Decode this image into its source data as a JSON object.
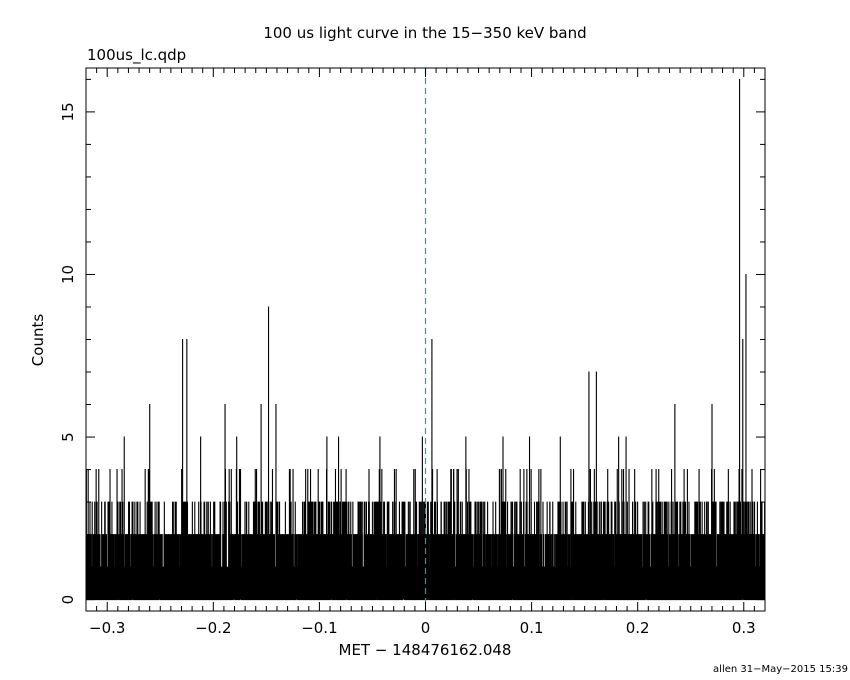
{
  "chart_data": {
    "type": "bar",
    "title": "100 us light curve in the 15−350 keV band",
    "subtitle": "100us_lc.qdp",
    "xlabel": "MET − 148476162.048",
    "ylabel": "Counts",
    "footer": "allen 31−May−2015 15:39",
    "xlim": [
      -0.32,
      0.32
    ],
    "ylim": [
      -0.35,
      16.35
    ],
    "x_ticks": [
      -0.3,
      -0.2,
      -0.1,
      0,
      0.1,
      0.2,
      0.3
    ],
    "x_tick_labels": [
      "−0.3",
      "−0.2",
      "−0.1",
      "0",
      "0.1",
      "0.2",
      "0.3"
    ],
    "y_ticks": [
      0,
      5,
      10,
      15
    ],
    "y_tick_labels": [
      "0",
      "5",
      "10",
      "15"
    ],
    "bin_width": 0.0001,
    "reference_line": {
      "x": 0,
      "style": "dashed",
      "color": "#1e9bb5"
    },
    "peaks": [
      {
        "x": -0.318,
        "y": 4
      },
      {
        "x": -0.284,
        "y": 5
      },
      {
        "x": -0.26,
        "y": 6
      },
      {
        "x": -0.229,
        "y": 8
      },
      {
        "x": -0.225,
        "y": 8
      },
      {
        "x": -0.212,
        "y": 5
      },
      {
        "x": -0.189,
        "y": 6
      },
      {
        "x": -0.178,
        "y": 5
      },
      {
        "x": -0.155,
        "y": 6
      },
      {
        "x": -0.148,
        "y": 9
      },
      {
        "x": -0.141,
        "y": 6
      },
      {
        "x": -0.093,
        "y": 5
      },
      {
        "x": -0.082,
        "y": 5
      },
      {
        "x": -0.043,
        "y": 5
      },
      {
        "x": -0.003,
        "y": 5
      },
      {
        "x": 0.006,
        "y": 8
      },
      {
        "x": 0.038,
        "y": 5
      },
      {
        "x": 0.073,
        "y": 5
      },
      {
        "x": 0.098,
        "y": 5
      },
      {
        "x": 0.127,
        "y": 5
      },
      {
        "x": 0.154,
        "y": 7
      },
      {
        "x": 0.161,
        "y": 7
      },
      {
        "x": 0.182,
        "y": 5
      },
      {
        "x": 0.189,
        "y": 5
      },
      {
        "x": 0.235,
        "y": 6
      },
      {
        "x": 0.27,
        "y": 6
      },
      {
        "x": 0.296,
        "y": 16
      },
      {
        "x": 0.299,
        "y": 8
      },
      {
        "x": 0.302,
        "y": 10
      }
    ]
  }
}
